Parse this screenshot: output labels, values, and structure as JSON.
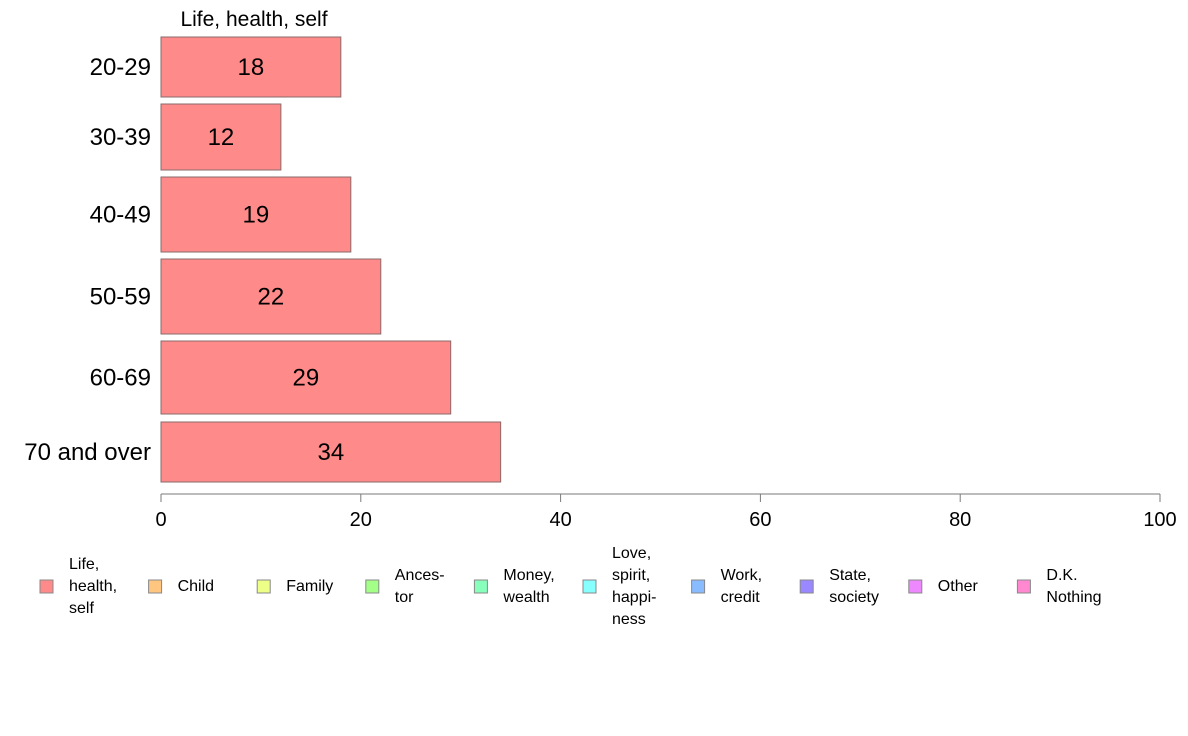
{
  "chart_data": {
    "type": "bar",
    "orientation": "horizontal",
    "panel_title": "Life, health, self",
    "categories": [
      "20-29",
      "30-39",
      "40-49",
      "50-59",
      "60-69",
      "70 and over"
    ],
    "series": [
      {
        "name": "Life, health, self",
        "values": [
          18,
          12,
          19,
          22,
          29,
          34
        ]
      }
    ],
    "data_labels": [
      "18",
      "12",
      "19",
      "22",
      "29",
      "34"
    ],
    "xlim": [
      0,
      100
    ],
    "xticks": [
      0,
      20,
      40,
      60,
      80,
      100
    ],
    "xtick_labels": [
      "0",
      "20",
      "40",
      "60",
      "80",
      "100"
    ],
    "grid": false,
    "legend_position": "bottom",
    "legend": [
      {
        "label": [
          "Life,",
          "health,",
          "self"
        ],
        "color": "#ff8a8a"
      },
      {
        "label": [
          "Child"
        ],
        "color": "#ffc67f"
      },
      {
        "label": [
          "Family"
        ],
        "color": "#eeff88"
      },
      {
        "label": [
          "Ances-",
          "tor"
        ],
        "color": "#a3ff88"
      },
      {
        "label": [
          "Money,",
          "wealth"
        ],
        "color": "#88ffbb"
      },
      {
        "label": [
          "Love,",
          "spirit,",
          "happi-",
          "ness"
        ],
        "color": "#88ffff"
      },
      {
        "label": [
          "Work,",
          "credit"
        ],
        "color": "#88bbff"
      },
      {
        "label": [
          "State,",
          "society"
        ],
        "color": "#9988ff"
      },
      {
        "label": [
          "Other"
        ],
        "color": "#ee88ff"
      },
      {
        "label": [
          "D.K.",
          "Nothing"
        ],
        "color": "#ff88d0"
      }
    ],
    "bar_color": "#ff8a8a",
    "bar_edge_color": "#8a6a6a",
    "axis_color": "#7a7a7a"
  }
}
